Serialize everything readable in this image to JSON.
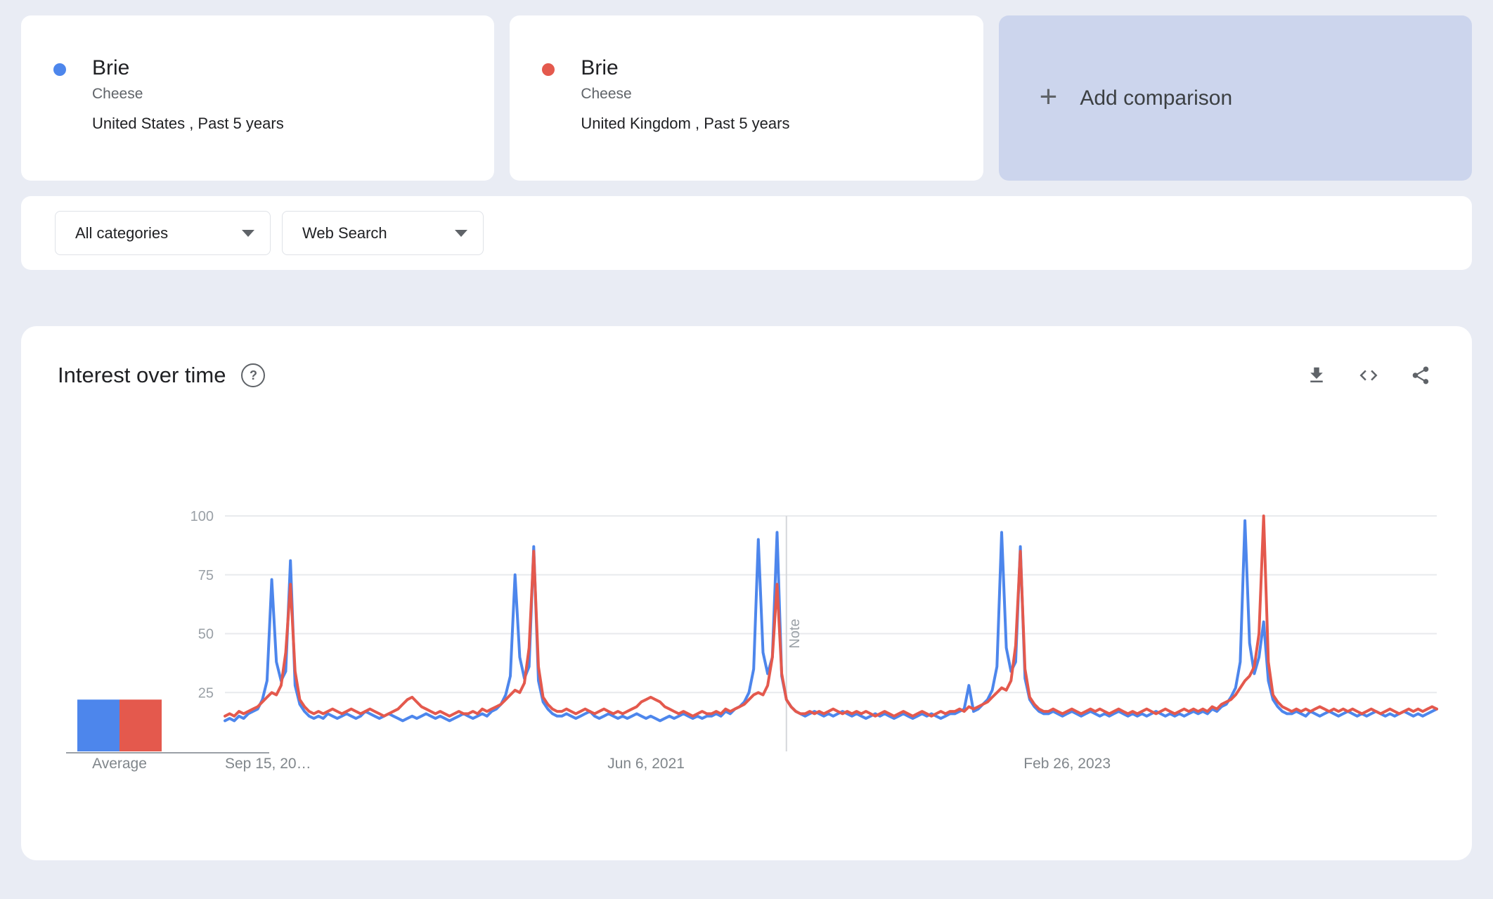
{
  "comparison_cards": [
    {
      "term": "Brie",
      "category": "Cheese",
      "scope": "United States , Past 5 years",
      "color": "#4d86ec"
    },
    {
      "term": "Brie",
      "category": "Cheese",
      "scope": "United Kingdom , Past 5 years",
      "color": "#e4594d"
    }
  ],
  "add_comparison": {
    "label": "Add comparison",
    "plus": "+"
  },
  "filters": {
    "category": "All categories",
    "search_type": "Web Search"
  },
  "chart_card": {
    "title": "Interest over time",
    "help": "?",
    "icons": [
      "help-icon",
      "download-icon",
      "embed-icon",
      "share-icon"
    ]
  },
  "average": {
    "label": "Average",
    "values": [
      22,
      22
    ]
  },
  "chart_data": {
    "type": "line",
    "title": "Interest over time",
    "ylim": [
      0,
      100
    ],
    "grid": true,
    "y_ticks": [
      25,
      50,
      75,
      100
    ],
    "x_ticks": [
      {
        "label": "Sep 15, 20…",
        "index": 0
      },
      {
        "label": "Jun 6, 2021",
        "index": 90
      },
      {
        "label": "Feb 26, 2023",
        "index": 180
      }
    ],
    "note_marker": {
      "label": "Note",
      "index": 120
    },
    "series": [
      {
        "name": "Brie · United States",
        "color": "#4d86ec",
        "values": [
          13,
          14,
          13,
          15,
          14,
          16,
          17,
          18,
          22,
          30,
          73,
          38,
          30,
          34,
          81,
          28,
          20,
          17,
          15,
          14,
          15,
          14,
          16,
          15,
          14,
          15,
          16,
          15,
          14,
          15,
          17,
          16,
          15,
          14,
          15,
          16,
          15,
          14,
          13,
          14,
          15,
          14,
          15,
          16,
          15,
          14,
          15,
          14,
          13,
          14,
          15,
          16,
          15,
          14,
          15,
          16,
          15,
          17,
          18,
          20,
          24,
          32,
          75,
          40,
          31,
          36,
          87,
          30,
          21,
          18,
          16,
          15,
          15,
          16,
          15,
          14,
          15,
          16,
          17,
          15,
          14,
          15,
          16,
          15,
          14,
          15,
          14,
          15,
          16,
          15,
          14,
          15,
          14,
          13,
          14,
          15,
          14,
          15,
          16,
          15,
          14,
          15,
          14,
          15,
          15,
          16,
          15,
          17,
          16,
          18,
          19,
          21,
          25,
          35,
          90,
          42,
          33,
          40,
          93,
          32,
          22,
          19,
          17,
          16,
          15,
          16,
          17,
          16,
          15,
          16,
          15,
          16,
          17,
          16,
          15,
          16,
          15,
          14,
          15,
          16,
          15,
          16,
          15,
          14,
          15,
          16,
          15,
          14,
          15,
          16,
          15,
          16,
          15,
          14,
          15,
          16,
          16,
          17,
          18,
          28,
          17,
          18,
          20,
          22,
          26,
          36,
          93,
          44,
          34,
          38,
          87,
          31,
          22,
          19,
          17,
          16,
          16,
          17,
          16,
          15,
          16,
          17,
          16,
          15,
          16,
          17,
          16,
          15,
          16,
          15,
          16,
          17,
          16,
          15,
          16,
          15,
          16,
          15,
          16,
          17,
          16,
          15,
          16,
          15,
          16,
          15,
          16,
          17,
          16,
          17,
          16,
          18,
          17,
          19,
          20,
          23,
          27,
          38,
          98,
          46,
          33,
          40,
          55,
          30,
          22,
          19,
          17,
          16,
          16,
          17,
          16,
          15,
          17,
          16,
          15,
          16,
          17,
          16,
          15,
          16,
          17,
          16,
          15,
          16,
          15,
          16,
          17,
          16,
          15,
          16,
          15,
          16,
          17,
          16,
          15,
          16,
          15,
          16,
          17,
          18
        ]
      },
      {
        "name": "Brie · United Kingdom",
        "color": "#e4594d",
        "values": [
          15,
          16,
          15,
          17,
          16,
          17,
          18,
          19,
          21,
          23,
          25,
          24,
          28,
          42,
          71,
          34,
          22,
          19,
          17,
          16,
          17,
          16,
          17,
          18,
          17,
          16,
          17,
          18,
          17,
          16,
          17,
          18,
          17,
          16,
          15,
          16,
          17,
          18,
          20,
          22,
          23,
          21,
          19,
          18,
          17,
          16,
          17,
          16,
          15,
          16,
          17,
          16,
          16,
          17,
          16,
          18,
          17,
          18,
          19,
          20,
          22,
          24,
          26,
          25,
          29,
          44,
          85,
          36,
          23,
          20,
          18,
          17,
          17,
          18,
          17,
          16,
          17,
          18,
          17,
          16,
          17,
          18,
          17,
          16,
          17,
          16,
          17,
          18,
          19,
          21,
          22,
          23,
          22,
          21,
          19,
          18,
          17,
          16,
          17,
          16,
          15,
          16,
          17,
          16,
          16,
          17,
          16,
          18,
          17,
          18,
          19,
          20,
          22,
          24,
          25,
          24,
          28,
          40,
          71,
          33,
          22,
          19,
          17,
          16,
          16,
          17,
          16,
          17,
          16,
          17,
          18,
          17,
          16,
          17,
          16,
          17,
          16,
          17,
          16,
          15,
          16,
          17,
          16,
          15,
          16,
          17,
          16,
          15,
          16,
          17,
          16,
          15,
          16,
          17,
          16,
          17,
          17,
          18,
          17,
          19,
          18,
          19,
          20,
          21,
          23,
          25,
          27,
          26,
          30,
          45,
          85,
          35,
          23,
          20,
          18,
          17,
          17,
          18,
          17,
          16,
          17,
          18,
          17,
          16,
          17,
          18,
          17,
          18,
          17,
          16,
          17,
          18,
          17,
          16,
          17,
          16,
          17,
          18,
          17,
          16,
          17,
          18,
          17,
          16,
          17,
          18,
          17,
          18,
          17,
          18,
          17,
          19,
          18,
          20,
          21,
          22,
          24,
          27,
          30,
          32,
          36,
          50,
          100,
          38,
          24,
          21,
          19,
          18,
          17,
          18,
          17,
          18,
          17,
          18,
          19,
          18,
          17,
          18,
          17,
          18,
          17,
          18,
          17,
          16,
          17,
          18,
          17,
          16,
          17,
          18,
          17,
          16,
          17,
          18,
          17,
          18,
          17,
          18,
          19,
          18
        ]
      }
    ]
  }
}
